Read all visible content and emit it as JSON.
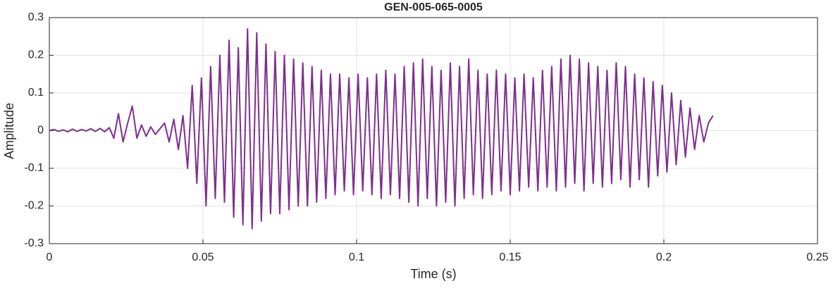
{
  "chart_data": {
    "type": "line",
    "title": "GEN-005-065-0005",
    "x_label": "Time (s)",
    "y_label": "Amplitude",
    "x": [
      0,
      0.0015,
      0.003,
      0.0045,
      0.006,
      0.0075,
      0.009,
      0.0105,
      0.012,
      0.0135,
      0.015,
      0.0165,
      0.018,
      0.0195,
      0.021,
      0.0225,
      0.024,
      0.0255,
      0.027,
      0.0285,
      0.03,
      0.0315,
      0.033,
      0.0345,
      0.036,
      0.0375,
      0.039,
      0.0405,
      0.042,
      0.0435,
      0.045,
      0.0465,
      0.048,
      0.0495,
      0.051,
      0.0525,
      0.054,
      0.0555,
      0.057,
      0.0585,
      0.06,
      0.0615,
      0.063,
      0.0645,
      0.066,
      0.0675,
      0.069,
      0.0705,
      0.072,
      0.0735,
      0.075,
      0.0765,
      0.078,
      0.0795,
      0.081,
      0.0825,
      0.084,
      0.0855,
      0.087,
      0.0885,
      0.09,
      0.0915,
      0.093,
      0.0945,
      0.096,
      0.0975,
      0.099,
      0.1005,
      0.102,
      0.1035,
      0.105,
      0.1065,
      0.108,
      0.1095,
      0.111,
      0.1125,
      0.114,
      0.1155,
      0.117,
      0.1185,
      0.12,
      0.1215,
      0.123,
      0.1245,
      0.126,
      0.1275,
      0.129,
      0.1305,
      0.132,
      0.1335,
      0.135,
      0.1365,
      0.138,
      0.1395,
      0.141,
      0.1425,
      0.144,
      0.1455,
      0.147,
      0.1485,
      0.15,
      0.1515,
      0.153,
      0.1545,
      0.156,
      0.1575,
      0.159,
      0.1605,
      0.162,
      0.1635,
      0.165,
      0.1665,
      0.168,
      0.1695,
      0.171,
      0.1725,
      0.174,
      0.1755,
      0.177,
      0.1785,
      0.18,
      0.1815,
      0.183,
      0.1845,
      0.186,
      0.1875,
      0.189,
      0.1905,
      0.192,
      0.1935,
      0.195,
      0.1965,
      0.198,
      0.1995,
      0.201,
      0.2025,
      0.204,
      0.2055,
      0.207,
      0.2085,
      0.21,
      0.2115,
      0.213,
      0.2145,
      0.216
    ],
    "series": [
      {
        "color": "#7E2F8E",
        "values": [
          0,
          0.003,
          -0.002,
          0.002,
          -0.003,
          0.004,
          -0.002,
          0.003,
          -0.001,
          0.005,
          -0.002,
          0.006,
          -0.003,
          0.008,
          -0.02,
          0.045,
          -0.03,
          0.02,
          0.065,
          -0.02,
          0.015,
          -0.015,
          0.01,
          -0.01,
          0.005,
          0.02,
          -0.03,
          0.03,
          -0.05,
          0.04,
          -0.1,
          0.12,
          -0.14,
          0.14,
          -0.2,
          0.17,
          -0.18,
          0.2,
          -0.19,
          0.24,
          -0.23,
          0.22,
          -0.25,
          0.27,
          -0.26,
          0.26,
          -0.24,
          0.23,
          -0.22,
          0.21,
          -0.22,
          0.2,
          -0.21,
          0.19,
          -0.2,
          0.18,
          -0.2,
          0.17,
          -0.19,
          0.16,
          -0.18,
          0.15,
          -0.17,
          0.15,
          -0.16,
          0.14,
          -0.17,
          0.15,
          -0.16,
          0.14,
          -0.17,
          0.15,
          -0.18,
          0.16,
          -0.17,
          0.15,
          -0.18,
          0.17,
          -0.19,
          0.18,
          -0.2,
          0.19,
          -0.18,
          0.17,
          -0.2,
          0.16,
          -0.19,
          0.18,
          -0.2,
          0.17,
          -0.18,
          0.19,
          -0.17,
          0.16,
          -0.18,
          0.15,
          -0.17,
          0.16,
          -0.16,
          0.15,
          -0.17,
          0.14,
          -0.16,
          0.15,
          -0.15,
          0.14,
          -0.16,
          0.16,
          -0.15,
          0.17,
          -0.16,
          0.19,
          -0.15,
          0.2,
          -0.14,
          0.19,
          -0.16,
          0.18,
          -0.14,
          0.17,
          -0.15,
          0.16,
          -0.14,
          0.18,
          -0.13,
          0.17,
          -0.15,
          0.15,
          -0.13,
          0.14,
          -0.15,
          0.13,
          -0.12,
          0.12,
          -0.11,
          0.1,
          -0.09,
          0.08,
          -0.07,
          0.06,
          -0.05,
          0.04,
          -0.03,
          0.02,
          0.04
        ]
      }
    ],
    "xlim": [
      0,
      0.25
    ],
    "xticks": [
      0,
      0.05,
      0.1,
      0.15,
      0.2,
      0.25
    ],
    "ylim": [
      -0.3,
      0.3
    ],
    "yticks": [
      -0.3,
      -0.2,
      -0.1,
      0,
      0.1,
      0.2,
      0.3
    ],
    "grid": true
  }
}
